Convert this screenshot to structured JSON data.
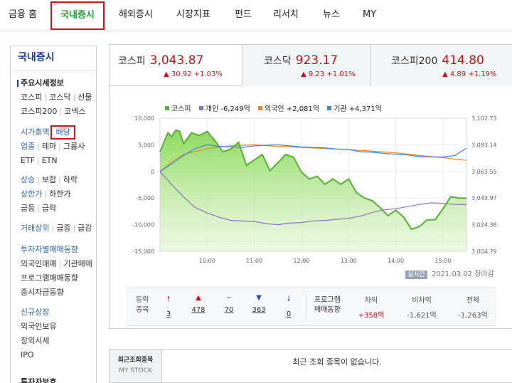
{
  "nav": [
    {
      "label": "금융 홈"
    },
    {
      "label": "국내증시",
      "active": true
    },
    {
      "label": "해외증시"
    },
    {
      "label": "시장지표"
    },
    {
      "label": "펀드"
    },
    {
      "label": "리서치"
    },
    {
      "label": "뉴스"
    },
    {
      "label": "MY"
    }
  ],
  "sidebar": {
    "title": "국내증시",
    "main_heading": "주요시세정보",
    "links": {
      "kospi": "코스피",
      "kosdaq": "코스닥",
      "futures": "선물",
      "kospi200": "코스피200",
      "konex": "코넥스",
      "market_cap": "시가총액",
      "dividend": "배당",
      "sector": "업종",
      "theme": "테마",
      "group": "그룹사",
      "etf": "ETF",
      "etn": "ETN",
      "rise": "상승",
      "flat": "보합",
      "fall": "하락",
      "upper": "상한가",
      "lower": "하한가",
      "surge": "급등",
      "plunge": "급락",
      "volume_top": "거래상위",
      "increase": "급증",
      "decrease": "급감",
      "investor_trend": "투자자별매매동향",
      "foreign_trade": "외국인매매",
      "institution_trade": "기관매매",
      "program_trade": "프로그램매매동향",
      "deposit": "증시자금동향",
      "new_listing": "신규상장",
      "foreign_holding": "외국인보유",
      "otc": "장외시세",
      "ipo": "IPO",
      "more": "투자자보호"
    }
  },
  "tabs": [
    {
      "name": "코스피",
      "price": "3,043.87",
      "change": "30.92 +1.03%"
    },
    {
      "name": "코스닥",
      "price": "923.17",
      "change": "9.23 +1.01%"
    },
    {
      "name": "코스피200",
      "price": "414.80",
      "change": "4.89 +1.19%"
    }
  ],
  "legend": [
    {
      "label": "코스피",
      "color": "#55b130"
    },
    {
      "label": "개인 -6,249억",
      "color": "#8e73b8"
    },
    {
      "label": "외국인 +2,081억",
      "color": "#e08a26"
    },
    {
      "label": "기관 +4,371억",
      "color": "#3e86d6"
    }
  ],
  "chart_data": {
    "type": "line",
    "x_ticks": [
      "10:00",
      "11:00",
      "12:00",
      "13:00",
      "14:00",
      "15:00"
    ],
    "left_ticks": [
      "10,000",
      "5,000",
      "0",
      "-5,000",
      "-10,000",
      "-15,000"
    ],
    "right_ticks": [
      "3,102.73",
      "3,083.14",
      "3,063.55",
      "3,043.97",
      "3,024.38",
      "3,004.79"
    ],
    "left_ylim": [
      -15000,
      10000
    ],
    "right_ylim": [
      3004.79,
      3102.73
    ],
    "x_range": [
      "09:00",
      "15:30"
    ],
    "series": [
      {
        "name": "코스피",
        "axis": "right",
        "color": "#55b130",
        "x": [
          "09:00",
          "09:05",
          "09:10",
          "09:15",
          "09:20",
          "09:25",
          "09:30",
          "09:40",
          "09:50",
          "10:00",
          "10:10",
          "10:20",
          "10:30",
          "10:40",
          "10:50",
          "11:00",
          "11:10",
          "11:20",
          "11:30",
          "11:40",
          "11:50",
          "12:00",
          "12:10",
          "12:20",
          "12:30",
          "12:40",
          "12:50",
          "13:00",
          "13:10",
          "13:20",
          "13:30",
          "13:40",
          "13:50",
          "14:00",
          "14:10",
          "14:20",
          "14:30",
          "14:40",
          "14:50",
          "15:00",
          "15:10",
          "15:20",
          "15:30"
        ],
        "y": [
          3078,
          3085,
          3092,
          3089,
          3094,
          3093,
          3084,
          3092,
          3090,
          3093,
          3086,
          3078,
          3080,
          3085,
          3068,
          3072,
          3076,
          3064,
          3070,
          3076,
          3074,
          3063,
          3058,
          3060,
          3054,
          3058,
          3054,
          3058,
          3048,
          3044,
          3042,
          3037,
          3031,
          3035,
          3030,
          3021,
          3023,
          3028,
          3028,
          3036,
          3045,
          3044,
          3043.87
        ]
      },
      {
        "name": "개인",
        "axis": "left",
        "color": "#8e73b8",
        "x": [
          "09:00",
          "09:15",
          "09:30",
          "09:45",
          "10:00",
          "10:15",
          "10:30",
          "10:45",
          "11:00",
          "11:15",
          "11:30",
          "11:45",
          "12:00",
          "12:15",
          "12:30",
          "12:45",
          "13:00",
          "13:15",
          "13:30",
          "13:45",
          "14:00",
          "14:15",
          "14:30",
          "14:45",
          "15:00",
          "15:15",
          "15:30"
        ],
        "y": [
          0,
          -2500,
          -4800,
          -6800,
          -7800,
          -8600,
          -9200,
          -9300,
          -9400,
          -9800,
          -10000,
          -9700,
          -9600,
          -9300,
          -9200,
          -9000,
          -8800,
          -8400,
          -7700,
          -7200,
          -7000,
          -6600,
          -6200,
          -5900,
          -6000,
          -6200,
          -6249
        ]
      },
      {
        "name": "외국인",
        "axis": "left",
        "color": "#e08a26",
        "x": [
          "09:00",
          "09:15",
          "09:30",
          "10:00",
          "10:30",
          "11:00",
          "11:30",
          "12:00",
          "12:30",
          "13:00",
          "13:30",
          "14:00",
          "14:30",
          "15:00",
          "15:15",
          "15:30"
        ],
        "y": [
          0,
          1800,
          3200,
          4300,
          4800,
          5000,
          4700,
          4500,
          4300,
          4100,
          3800,
          3500,
          3000,
          2600,
          2300,
          2081
        ]
      },
      {
        "name": "기관",
        "axis": "left",
        "color": "#3e86d6",
        "x": [
          "09:00",
          "09:15",
          "09:30",
          "09:45",
          "10:00",
          "10:15",
          "10:30",
          "10:45",
          "11:00",
          "11:15",
          "11:30",
          "11:45",
          "12:00",
          "12:15",
          "12:30",
          "12:45",
          "13:00",
          "13:15",
          "13:30",
          "13:45",
          "14:00",
          "14:15",
          "14:30",
          "14:45",
          "15:00",
          "15:15",
          "15:30"
        ],
        "y": [
          0,
          1400,
          3000,
          4300,
          5000,
          4700,
          4600,
          4500,
          4800,
          4900,
          5000,
          4800,
          4600,
          4500,
          4400,
          4200,
          4100,
          3700,
          3600,
          3400,
          3200,
          3100,
          2800,
          2700,
          2700,
          3000,
          4371
        ]
      }
    ]
  },
  "status": {
    "badge": "실시간",
    "date": "2021.03.02 장마감"
  },
  "breadth": {
    "label1": "등락",
    "label2": "종목",
    "items": [
      {
        "icon": "upper-limit-icon",
        "sym": "🠕",
        "val": "3",
        "cls": "red"
      },
      {
        "icon": "rise-icon",
        "sym": "▲",
        "val": "478",
        "cls": "red"
      },
      {
        "icon": "flat-icon",
        "sym": "−",
        "val": "70",
        "cls": ""
      },
      {
        "icon": "fall-icon",
        "sym": "▼",
        "val": "363",
        "cls": "blue"
      },
      {
        "icon": "lower-limit-icon",
        "sym": "🠗",
        "val": "0",
        "cls": "blue"
      }
    ]
  },
  "program": {
    "label1": "프로그램",
    "label2": "매매동향",
    "cols": [
      {
        "head": "차익",
        "val": "+358억",
        "cls": "red"
      },
      {
        "head": "비차익",
        "val": "-1,621억",
        "cls": ""
      },
      {
        "head": "전체",
        "val": "-1,263억",
        "cls": ""
      }
    ]
  },
  "recent": {
    "label1": "최근조회종목",
    "label2": "MY STOCK",
    "message": "최근 조회 종목이 없습니다."
  }
}
